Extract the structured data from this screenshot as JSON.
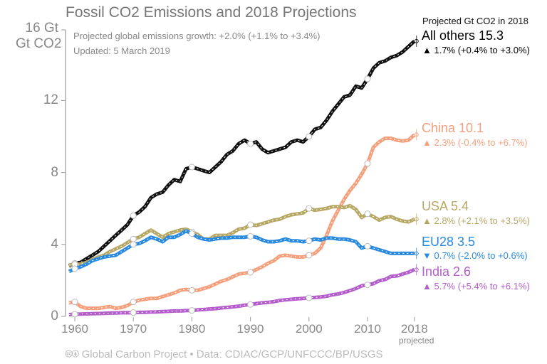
{
  "chart_data": {
    "type": "line",
    "title": "Fossil CO2 Emissions and 2018 Projections",
    "subtitle": [
      "Projected global emissions growth: +2.0% (+1.1% to +3.4%)",
      "Updated: 5 March 2019"
    ],
    "ylabel": "Gt CO2",
    "ytick_top": "16 Gt",
    "ylim": [
      0,
      16
    ],
    "yticks": [
      "0",
      "4",
      "8",
      "12"
    ],
    "xlim": [
      1959,
      2018
    ],
    "xticks": [
      "1960",
      "1970",
      "1980",
      "1990",
      "2000",
      "2010",
      "2018"
    ],
    "x_projected_label": "projected",
    "legend_title": "Projected Gt CO2 in 2018",
    "x_start": 1959,
    "series": [
      {
        "name": "All others",
        "label": "All others 15.3",
        "growth": "1.7% (+0.4% to +3.0%)",
        "direction": "up",
        "color": "#111111",
        "values": [
          2.8,
          2.95,
          3.0,
          3.2,
          3.4,
          3.6,
          3.9,
          4.2,
          4.5,
          4.8,
          5.1,
          5.6,
          5.8,
          6.1,
          6.6,
          6.8,
          6.9,
          7.3,
          7.6,
          7.5,
          8.2,
          8.3,
          8.2,
          8.1,
          8.0,
          8.3,
          8.6,
          9.0,
          9.2,
          9.6,
          9.8,
          9.6,
          9.7,
          9.3,
          9.1,
          9.2,
          9.3,
          9.4,
          9.7,
          9.8,
          9.7,
          10.0,
          10.4,
          10.5,
          10.9,
          11.4,
          11.8,
          12.2,
          12.3,
          12.8,
          12.7,
          13.2,
          13.8,
          14.1,
          14.2,
          14.4,
          14.5,
          14.7,
          15.0,
          15.3
        ]
      },
      {
        "name": "China",
        "label": "China 10.1",
        "growth": "2.3% (-0.4% to +6.7%)",
        "direction": "up",
        "color": "#f4a07c",
        "values": [
          0.75,
          0.8,
          0.55,
          0.45,
          0.45,
          0.45,
          0.5,
          0.55,
          0.45,
          0.5,
          0.6,
          0.8,
          0.9,
          0.95,
          1.0,
          1.0,
          1.1,
          1.2,
          1.3,
          1.45,
          1.5,
          1.45,
          1.45,
          1.55,
          1.65,
          1.8,
          1.95,
          2.05,
          2.2,
          2.35,
          2.4,
          2.45,
          2.6,
          2.75,
          2.95,
          3.1,
          3.35,
          3.4,
          3.35,
          3.3,
          3.3,
          3.4,
          3.5,
          3.8,
          4.5,
          5.3,
          5.9,
          6.5,
          7.0,
          7.4,
          7.9,
          8.5,
          9.4,
          9.7,
          9.9,
          9.9,
          9.8,
          9.75,
          9.8,
          10.1
        ]
      },
      {
        "name": "USA",
        "label": "USA 5.4",
        "growth": "2.8% (+2.1% to +3.5%)",
        "direction": "up",
        "color": "#b8a865",
        "values": [
          2.85,
          2.9,
          2.9,
          3.0,
          3.15,
          3.3,
          3.4,
          3.6,
          3.75,
          3.9,
          4.1,
          4.3,
          4.4,
          4.6,
          4.8,
          4.6,
          4.4,
          4.6,
          4.7,
          4.8,
          4.85,
          4.7,
          4.55,
          4.3,
          4.3,
          4.5,
          4.5,
          4.5,
          4.65,
          4.85,
          4.9,
          5.1,
          5.05,
          5.15,
          5.25,
          5.35,
          5.4,
          5.55,
          5.65,
          5.7,
          5.75,
          6.0,
          5.9,
          5.95,
          6.0,
          6.1,
          6.1,
          6.05,
          6.15,
          5.95,
          5.5,
          5.7,
          5.55,
          5.35,
          5.5,
          5.55,
          5.4,
          5.3,
          5.25,
          5.4
        ]
      },
      {
        "name": "EU28",
        "label": "EU28 3.5",
        "growth": "0.7% (-2.0% to +0.6%)",
        "direction": "down",
        "color": "#2a8ae0",
        "values": [
          2.5,
          2.65,
          2.75,
          2.9,
          3.1,
          3.2,
          3.3,
          3.35,
          3.4,
          3.6,
          3.8,
          4.0,
          4.05,
          4.2,
          4.4,
          4.3,
          4.15,
          4.4,
          4.4,
          4.55,
          4.75,
          4.6,
          4.4,
          4.3,
          4.25,
          4.3,
          4.35,
          4.35,
          4.4,
          4.4,
          4.4,
          4.45,
          4.4,
          4.25,
          4.15,
          4.15,
          4.2,
          4.3,
          4.2,
          4.2,
          4.15,
          4.2,
          4.3,
          4.25,
          4.35,
          4.35,
          4.3,
          4.3,
          4.25,
          4.15,
          3.8,
          3.9,
          3.8,
          3.7,
          3.6,
          3.5,
          3.5,
          3.5,
          3.5,
          3.5
        ]
      },
      {
        "name": "India",
        "label": "India 2.6",
        "growth": "5.7% (+5.4% to +6.1%)",
        "direction": "up",
        "color": "#b45ecb",
        "values": [
          0.1,
          0.12,
          0.13,
          0.14,
          0.15,
          0.16,
          0.17,
          0.18,
          0.19,
          0.2,
          0.2,
          0.21,
          0.22,
          0.23,
          0.24,
          0.25,
          0.27,
          0.28,
          0.3,
          0.3,
          0.32,
          0.33,
          0.36,
          0.38,
          0.41,
          0.43,
          0.47,
          0.5,
          0.53,
          0.57,
          0.62,
          0.66,
          0.71,
          0.75,
          0.78,
          0.82,
          0.88,
          0.92,
          0.95,
          0.98,
          1.0,
          1.03,
          1.05,
          1.08,
          1.12,
          1.2,
          1.25,
          1.33,
          1.43,
          1.55,
          1.7,
          1.75,
          1.82,
          1.98,
          2.05,
          2.22,
          2.25,
          2.35,
          2.45,
          2.6
        ]
      }
    ]
  },
  "footer": "🅭🅯 Global Carbon Project  •  Data: CDIAC/GCP/UNFCCC/BP/USGS",
  "icons": {
    "up": "▲",
    "down": "▼"
  }
}
